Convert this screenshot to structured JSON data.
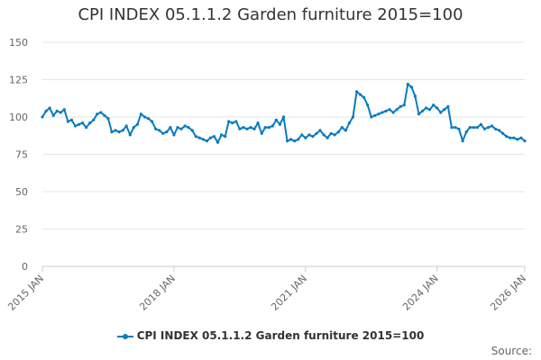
{
  "chart_data": {
    "type": "line",
    "title": "CPI INDEX 05.1.1.2 Garden furniture 2015=100",
    "xlabel": "",
    "ylabel": "",
    "ylim": [
      0,
      150
    ],
    "yticks": [
      0,
      25,
      50,
      75,
      100,
      125,
      150
    ],
    "xlim": [
      "2015-01",
      "2026-01"
    ],
    "xticks": [
      "2015 JAN",
      "2018 JAN",
      "2021 JAN",
      "2024 JAN",
      "2026 JAN"
    ],
    "grid": true,
    "legend_position": "bottom",
    "series_color": "#0b7bbf",
    "series": [
      {
        "name": "CPI INDEX 05.1.1.2 Garden furniture 2015=100",
        "x": [
          "2015-01",
          "2015-02",
          "2015-03",
          "2015-04",
          "2015-05",
          "2015-06",
          "2015-07",
          "2015-08",
          "2015-09",
          "2015-10",
          "2015-11",
          "2015-12",
          "2016-01",
          "2016-02",
          "2016-03",
          "2016-04",
          "2016-05",
          "2016-06",
          "2016-07",
          "2016-08",
          "2016-09",
          "2016-10",
          "2016-11",
          "2016-12",
          "2017-01",
          "2017-02",
          "2017-03",
          "2017-04",
          "2017-05",
          "2017-06",
          "2017-07",
          "2017-08",
          "2017-09",
          "2017-10",
          "2017-11",
          "2017-12",
          "2018-01",
          "2018-02",
          "2018-03",
          "2018-04",
          "2018-05",
          "2018-06",
          "2018-07",
          "2018-08",
          "2018-09",
          "2018-10",
          "2018-11",
          "2018-12",
          "2019-01",
          "2019-02",
          "2019-03",
          "2019-04",
          "2019-05",
          "2019-06",
          "2019-07",
          "2019-08",
          "2019-09",
          "2019-10",
          "2019-11",
          "2019-12",
          "2020-01",
          "2020-02",
          "2020-03",
          "2020-04",
          "2020-05",
          "2020-06",
          "2020-07",
          "2020-08",
          "2020-09",
          "2020-10",
          "2020-11",
          "2020-12",
          "2021-01",
          "2021-02",
          "2021-03",
          "2021-04",
          "2021-05",
          "2021-06",
          "2021-07",
          "2021-08",
          "2021-09",
          "2021-10",
          "2021-11",
          "2021-12",
          "2022-01",
          "2022-02",
          "2022-03",
          "2022-04",
          "2022-05",
          "2022-06",
          "2022-07",
          "2022-08",
          "2022-09",
          "2022-10",
          "2022-11",
          "2022-12",
          "2023-01",
          "2023-02",
          "2023-03",
          "2023-04",
          "2023-05",
          "2023-06",
          "2023-07",
          "2023-08",
          "2023-09",
          "2023-10",
          "2023-11",
          "2023-12",
          "2024-01",
          "2024-02",
          "2024-03",
          "2024-04",
          "2024-05",
          "2024-06",
          "2024-07",
          "2024-08",
          "2024-09",
          "2024-10",
          "2024-11",
          "2024-12",
          "2025-01",
          "2025-02",
          "2025-03",
          "2025-04",
          "2025-05",
          "2025-06",
          "2025-07",
          "2025-08",
          "2025-09",
          "2025-10",
          "2025-11",
          "2025-12",
          "2026-01"
        ],
        "values": [
          100,
          104,
          106,
          101,
          104,
          103,
          105,
          97,
          98,
          94,
          95,
          96,
          93,
          96,
          98,
          102,
          103,
          101,
          99,
          90,
          91,
          90,
          91,
          94,
          88,
          93,
          95,
          102,
          100,
          99,
          97,
          92,
          91,
          89,
          90,
          93,
          88,
          93,
          92,
          94,
          93,
          91,
          87,
          86,
          85,
          84,
          86,
          87,
          83,
          88,
          87,
          97,
          96,
          97,
          92,
          93,
          92,
          93,
          92,
          96,
          89,
          93,
          93,
          94,
          98,
          95,
          100,
          84,
          85,
          84,
          85,
          88,
          86,
          88,
          87,
          89,
          91,
          88,
          86,
          89,
          88,
          90,
          93,
          91,
          96,
          100,
          117,
          115,
          113,
          108,
          100,
          101,
          102,
          103,
          104,
          105,
          103,
          105,
          107,
          108,
          122,
          120,
          114,
          102,
          104,
          106,
          105,
          108,
          106,
          103,
          105,
          107,
          93,
          93,
          92,
          84,
          90,
          93,
          93,
          93,
          95,
          92,
          93,
          94,
          92,
          91,
          89,
          87,
          86,
          86,
          85,
          86,
          84
        ]
      }
    ]
  },
  "legend": {
    "label": "CPI INDEX 05.1.1.2 Garden furniture 2015=100"
  },
  "source_label": "Source:"
}
